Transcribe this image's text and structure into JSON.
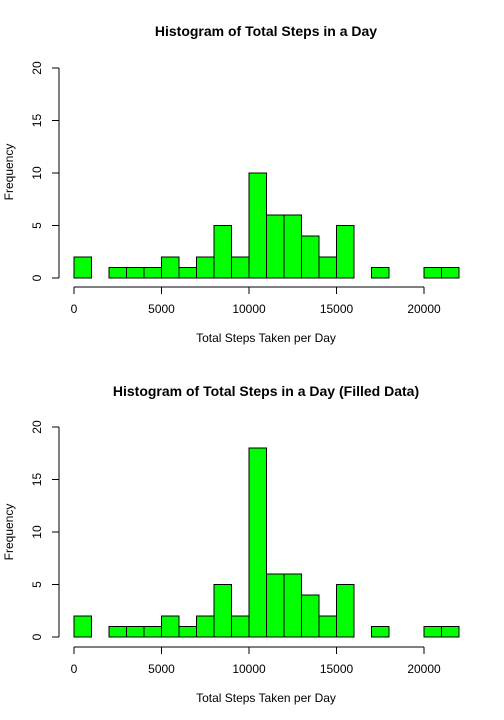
{
  "chart_data": [
    {
      "type": "bar",
      "title": "Histogram of Total Steps in a Day",
      "xlabel": "Total Steps Taken per Day",
      "ylabel": "Frequency",
      "bin_width": 1000,
      "xlim": [
        0,
        22000
      ],
      "ylim": [
        0,
        20
      ],
      "xticks": [
        0,
        5000,
        10000,
        15000,
        20000
      ],
      "yticks": [
        0,
        5,
        10,
        15,
        20
      ],
      "bar_color": "#00ff00",
      "values": [
        2,
        0,
        1,
        1,
        1,
        2,
        1,
        2,
        5,
        2,
        10,
        6,
        6,
        4,
        2,
        5,
        0,
        1,
        0,
        0,
        1,
        1
      ]
    },
    {
      "type": "bar",
      "title": "Histogram of Total Steps in a Day (Filled Data)",
      "xlabel": "Total Steps Taken per Day",
      "ylabel": "Frequency",
      "bin_width": 1000,
      "xlim": [
        0,
        22000
      ],
      "ylim": [
        0,
        20
      ],
      "xticks": [
        0,
        5000,
        10000,
        15000,
        20000
      ],
      "yticks": [
        0,
        5,
        10,
        15,
        20
      ],
      "bar_color": "#00ff00",
      "values": [
        2,
        0,
        1,
        1,
        1,
        2,
        1,
        2,
        5,
        2,
        18,
        6,
        6,
        4,
        2,
        5,
        0,
        1,
        0,
        0,
        1,
        1
      ]
    }
  ]
}
